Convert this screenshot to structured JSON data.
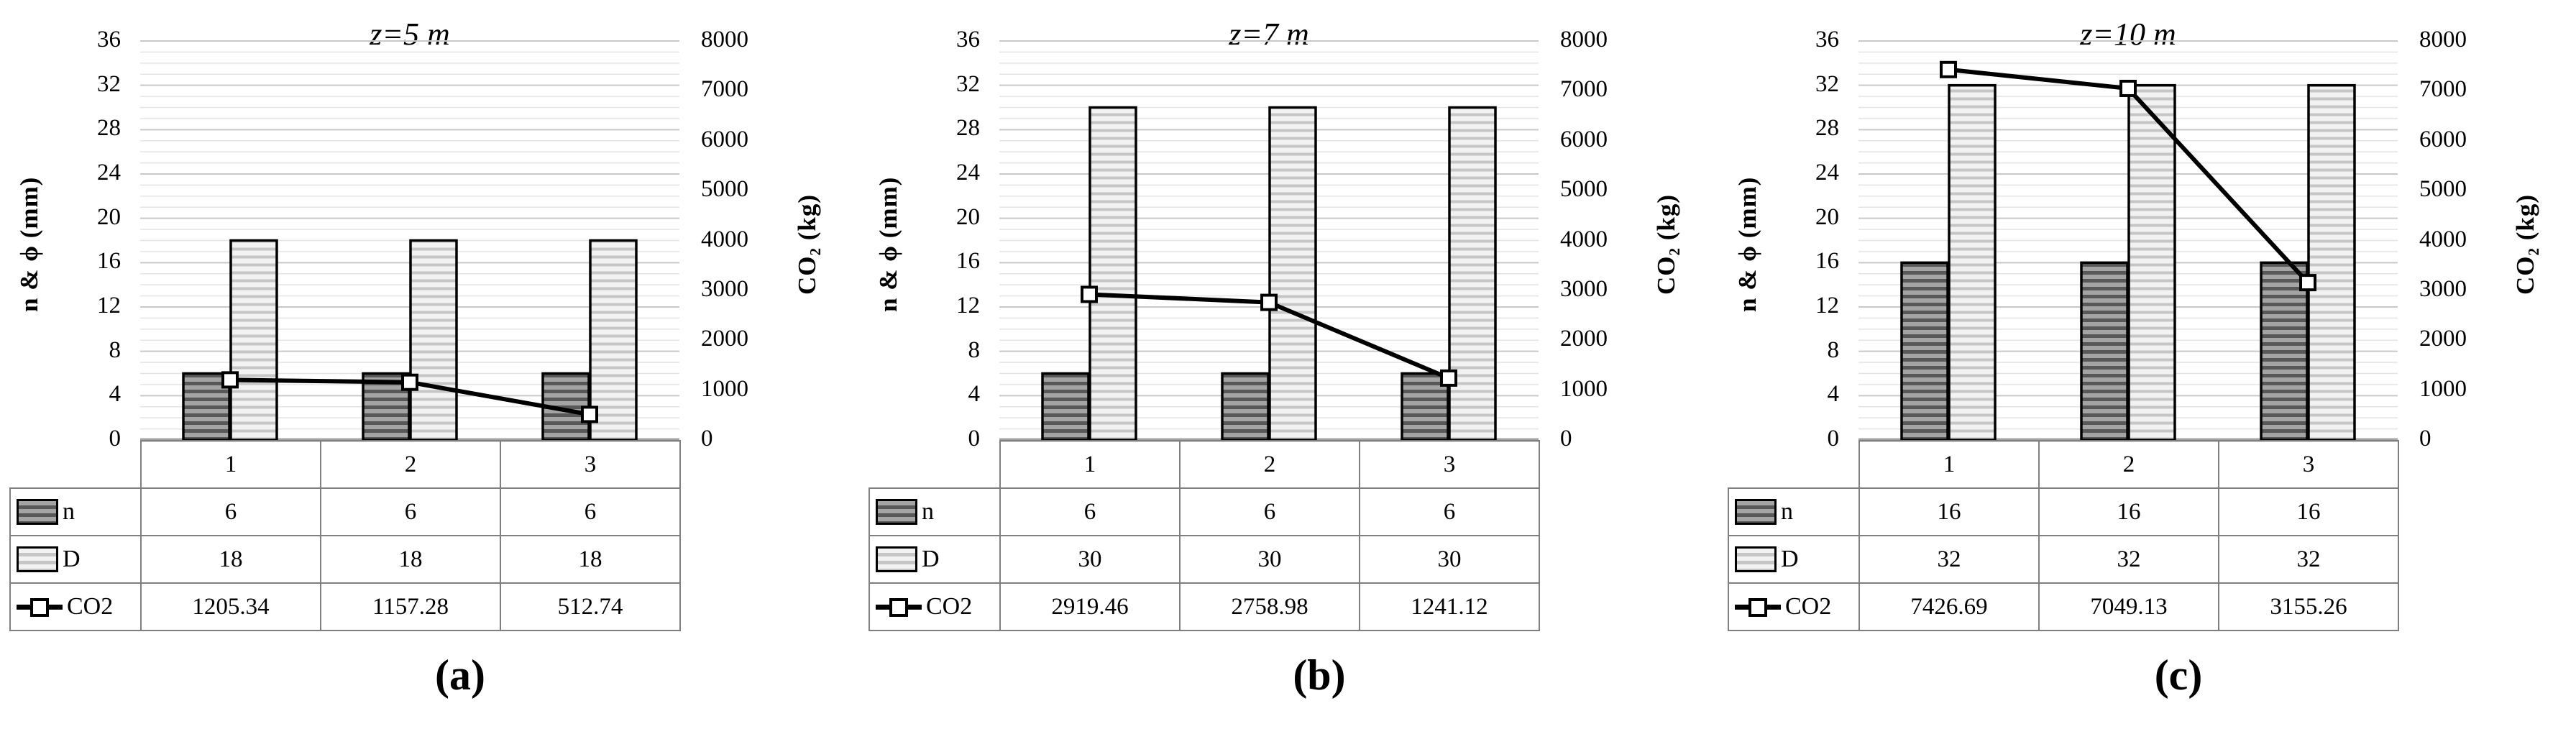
{
  "figure": {
    "background": "#ffffff",
    "yticks_left": [
      0,
      4,
      8,
      12,
      16,
      20,
      24,
      28,
      32,
      36
    ],
    "yticks_right": [
      0,
      1000,
      2000,
      3000,
      4000,
      5000,
      6000,
      7000,
      8000
    ]
  },
  "style": {
    "bar_n_base": "#a4a4a4",
    "bar_n_stripe": "#585858",
    "bar_d_base": "#f2f2f2",
    "bar_d_stripe": "#c6c6c6",
    "bar_border": "#000000",
    "line_color": "#000000",
    "marker_fill": "#ffffff",
    "grid_minor": "#e4e4e4",
    "grid_major": "#c9c9c9",
    "axis_line": "#a6a6a6",
    "table_border": "#7f7f7f"
  },
  "chart_data": [
    {
      "type": "bar",
      "title": "z=5 m",
      "caption": "(a)",
      "categories": [
        "1",
        "2",
        "3"
      ],
      "series": [
        {
          "name": "n",
          "render": "bar",
          "axis": "left",
          "values": [
            6,
            6,
            6
          ]
        },
        {
          "name": "D",
          "render": "bar",
          "axis": "left",
          "values": [
            18,
            18,
            18
          ]
        },
        {
          "name": "CO2",
          "render": "line",
          "axis": "right",
          "values": [
            1205.34,
            1157.28,
            512.74
          ]
        }
      ],
      "ylabel_left": "n & ϕ (mm)",
      "ylabel_right": "CO₂ (kg)",
      "ylim_left": [
        0,
        36
      ],
      "ylim_right": [
        0,
        8000
      ],
      "ytick_step_left": 4,
      "ytick_step_right": 1000,
      "grid": "horizontal-minor-and-major",
      "legend_position": "data-table-left"
    },
    {
      "type": "bar",
      "title": "z=7 m",
      "caption": "(b)",
      "categories": [
        "1",
        "2",
        "3"
      ],
      "series": [
        {
          "name": "n",
          "render": "bar",
          "axis": "left",
          "values": [
            6,
            6,
            6
          ]
        },
        {
          "name": "D",
          "render": "bar",
          "axis": "left",
          "values": [
            30,
            30,
            30
          ]
        },
        {
          "name": "CO2",
          "render": "line",
          "axis": "right",
          "values": [
            2919.46,
            2758.98,
            1241.12
          ]
        }
      ],
      "ylabel_left": "n & ϕ (mm)",
      "ylabel_right": "CO₂ (kg)",
      "ylim_left": [
        0,
        36
      ],
      "ylim_right": [
        0,
        8000
      ],
      "ytick_step_left": 4,
      "ytick_step_right": 1000,
      "grid": "horizontal-minor-and-major",
      "legend_position": "data-table-left"
    },
    {
      "type": "bar",
      "title": "z=10 m",
      "caption": "(c)",
      "categories": [
        "1",
        "2",
        "3"
      ],
      "series": [
        {
          "name": "n",
          "render": "bar",
          "axis": "left",
          "values": [
            16,
            16,
            16
          ]
        },
        {
          "name": "D",
          "render": "bar",
          "axis": "left",
          "values": [
            32,
            32,
            32
          ]
        },
        {
          "name": "CO2",
          "render": "line",
          "axis": "right",
          "values": [
            7426.69,
            7049.13,
            3155.26
          ]
        }
      ],
      "ylabel_left": "n & ϕ (mm)",
      "ylabel_right": "CO₂ (kg)",
      "ylim_left": [
        0,
        36
      ],
      "ylim_right": [
        0,
        8000
      ],
      "ytick_step_left": 4,
      "ytick_step_right": 1000,
      "grid": "horizontal-minor-and-major",
      "legend_position": "data-table-left"
    }
  ]
}
